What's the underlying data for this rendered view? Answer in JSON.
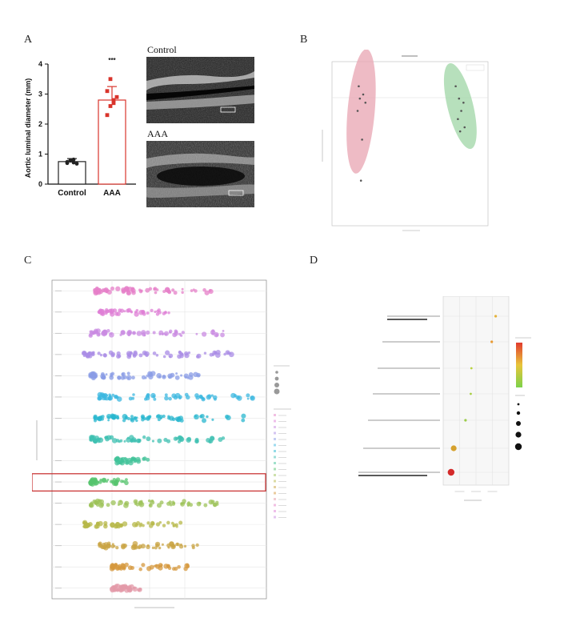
{
  "panels": {
    "a": {
      "letter": "A"
    },
    "b": {
      "letter": "B"
    },
    "c": {
      "letter": "C"
    },
    "d": {
      "letter": "D"
    }
  },
  "panel_a": {
    "ylabel": "Aortic luminal diameter (mm)",
    "significance": "***",
    "control_image_label": "Control",
    "aaa_image_label": "AAA"
  },
  "chart_data": [
    {
      "type": "bar",
      "ylabel": "Aortic luminal diameter (mm)",
      "categories": [
        "Control",
        "AAA"
      ],
      "values": [
        0.75,
        2.8
      ],
      "error": [
        0.1,
        0.45
      ],
      "ylim": [
        0,
        4
      ],
      "yticks": [
        0,
        1,
        2,
        3,
        4
      ],
      "points": [
        [
          0.7,
          0.78,
          0.82,
          0.68,
          0.74,
          0.79,
          0.72
        ],
        [
          2.3,
          2.6,
          2.8,
          2.9,
          3.1,
          3.5,
          2.7
        ]
      ],
      "annotation": "***",
      "colors": {
        "control": "#222222",
        "aaa": "#d9342b"
      }
    },
    {
      "type": "scatter",
      "groups": [
        {
          "color": "#e8a4b2",
          "x": [
            -2.3,
            -2.1,
            -2.25,
            -2.0,
            -2.35,
            -2.15,
            -2.2
          ],
          "y": [
            0.9,
            0.7,
            0.6,
            0.5,
            0.3,
            -0.4,
            -1.4
          ]
        },
        {
          "color": "#9fd6a6",
          "x": [
            2.05,
            2.2,
            2.4,
            2.3,
            2.15,
            2.45,
            2.25
          ],
          "y": [
            0.9,
            0.6,
            0.5,
            0.3,
            0.1,
            -0.1,
            -0.2
          ]
        }
      ],
      "xlim": [
        -3.5,
        3.5
      ],
      "ylim": [
        -2.5,
        1.5
      ]
    },
    {
      "type": "scatter",
      "rows": 15,
      "highlighted_row": 9,
      "xlim": [
        0,
        100
      ],
      "row_colors": [
        "#e67fc8",
        "#df7fd6",
        "#c98be2",
        "#a98ce6",
        "#8a9ce6",
        "#3db8e0",
        "#29b7cf",
        "#3fc0b2",
        "#43c39a",
        "#55c46e",
        "#9ec35a",
        "#b7b84a",
        "#c9a444",
        "#d6983e",
        "#e39aa8"
      ],
      "row_ranges": [
        [
          20,
          75
        ],
        [
          22,
          55
        ],
        [
          18,
          80
        ],
        [
          15,
          85
        ],
        [
          18,
          70
        ],
        [
          22,
          95
        ],
        [
          20,
          90
        ],
        [
          18,
          80
        ],
        [
          30,
          45
        ],
        [
          18,
          35
        ],
        [
          18,
          80
        ],
        [
          15,
          60
        ],
        [
          22,
          70
        ],
        [
          28,
          65
        ],
        [
          28,
          45
        ]
      ]
    },
    {
      "type": "scatter",
      "categories": [
        "Glycerophospholipid metabolism",
        "Sphingolipid metabolism",
        "Linoleic acid",
        "Metabolism of xenobiotics",
        "Tryptophan metabolism",
        "Glycosylphosphatidylinositol biosynthesis",
        "Biosynthesis of unsaturated fatty acids"
      ],
      "x": [
        0.12,
        0.16,
        0.34,
        0.42,
        0.43,
        0.74,
        0.8
      ],
      "sizes": [
        4.2,
        3.6,
        1.6,
        1.4,
        1.4,
        1.6,
        1.6
      ],
      "colors": [
        "#d42a2a",
        "#d6a12d",
        "#9ccc4a",
        "#a8cf44",
        "#b7d23e",
        "#e89a32",
        "#e5b23a"
      ]
    }
  ],
  "panel_c_legend": {
    "entries": [
      "",
      "",
      "",
      "",
      "",
      "",
      "",
      "",
      "",
      "",
      "",
      "",
      "",
      "",
      "",
      "",
      "",
      ""
    ]
  }
}
